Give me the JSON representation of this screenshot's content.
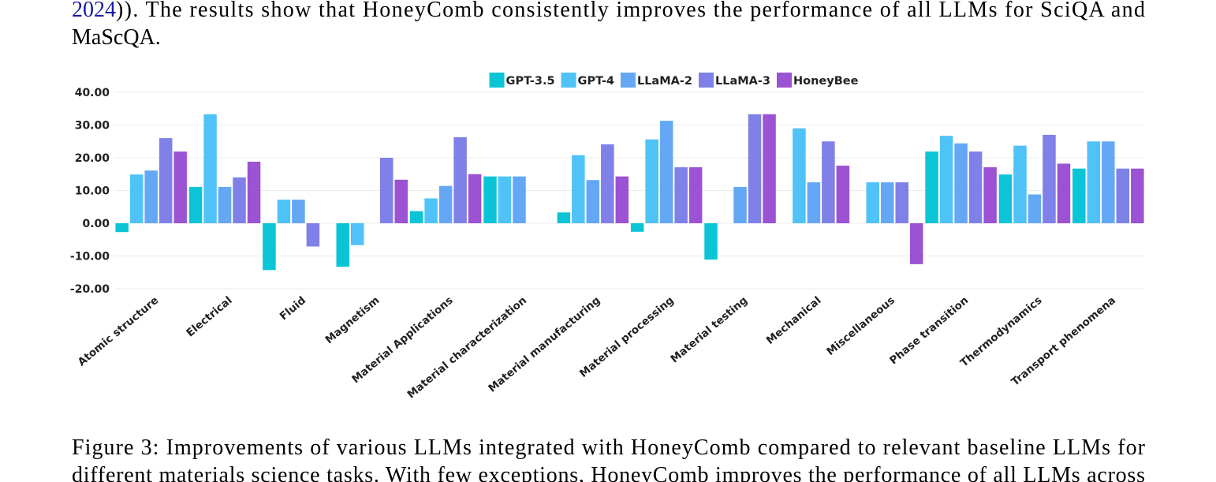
{
  "text": {
    "line1_link": "2024",
    "line1": ")). The results show that HoneyComb consistently improves the performance of all LLMs for SciQA and",
    "line2": "MaScQA.",
    "caption1": "Figure 3: Improvements of various LLMs integrated with HoneyComb compared to relevant baseline LLMs for",
    "caption2": "different materials science tasks. With few exceptions, HoneyComb improves the performance of all LLMs across"
  },
  "chart_data": {
    "type": "bar",
    "categories": [
      "Atomic structure",
      "Electrical",
      "Fluid",
      "Magnetism",
      "Material Applications",
      "Material characterization",
      "Material manufacturing",
      "Material processing",
      "Material testing",
      "Mechanical",
      "Miscellaneous",
      "Phase transition",
      "Thermodynamics",
      "Transport phenomena"
    ],
    "series": [
      {
        "name": "GPT-3.5",
        "color": "#0bc5d6",
        "values": [
          -2.7,
          11.1,
          -14.3,
          -13.3,
          3.7,
          14.3,
          3.3,
          -2.6,
          -11.1,
          0,
          0,
          21.9,
          14.9,
          16.7
        ]
      },
      {
        "name": "GPT-4",
        "color": "#4fc3f7",
        "values": [
          14.9,
          33.3,
          7.2,
          -6.7,
          7.6,
          14.3,
          20.8,
          25.6,
          0,
          29.0,
          12.5,
          26.7,
          23.7,
          25.0
        ]
      },
      {
        "name": "LLaMA-2",
        "color": "#64a8f5",
        "values": [
          16.1,
          11.1,
          7.2,
          0,
          11.4,
          14.3,
          13.2,
          31.3,
          11.1,
          12.5,
          12.5,
          24.4,
          8.8,
          25.0
        ]
      },
      {
        "name": "LLaMA-3",
        "color": "#7f80e8",
        "values": [
          26.0,
          14.0,
          -7.1,
          20.0,
          26.3,
          0,
          24.1,
          17.1,
          33.3,
          25.0,
          12.5,
          21.9,
          27.0,
          16.7
        ]
      },
      {
        "name": "HoneyBee",
        "color": "#9b52d3",
        "values": [
          21.9,
          18.8,
          0,
          13.3,
          15.0,
          0,
          14.3,
          17.1,
          33.3,
          17.6,
          -12.5,
          17.1,
          18.2,
          16.7
        ]
      }
    ],
    "ylim": [
      -20,
      40
    ],
    "yticks": [
      {
        "value": -20,
        "label": "-20.00"
      },
      {
        "value": -10,
        "label": "-10.00"
      },
      {
        "value": 0,
        "label": "0.00"
      },
      {
        "value": 10,
        "label": "10.00"
      },
      {
        "value": 20,
        "label": "20.00"
      },
      {
        "value": 30,
        "label": "30.00"
      },
      {
        "value": 40,
        "label": "40.00"
      }
    ],
    "grid": true,
    "legend": "top"
  }
}
